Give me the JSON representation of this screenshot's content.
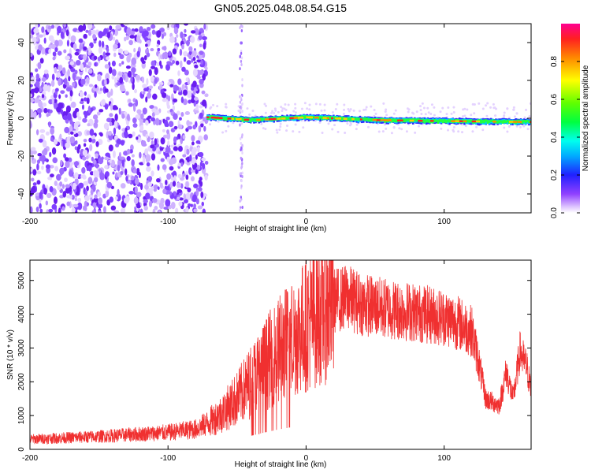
{
  "title": "GN05.2025.048.08.54.G15",
  "chart_data": [
    {
      "type": "heatmap",
      "xlabel": "Height of straight line (km)",
      "ylabel": "Frequency (Hz)",
      "xlim": [
        -200,
        163
      ],
      "ylim": [
        -50,
        50
      ],
      "x_ticks": [
        -200,
        -100,
        0,
        100
      ],
      "y_ticks": [
        -40,
        -20,
        0,
        20,
        40
      ],
      "colorbar": {
        "label": "Normalized spectral amplitude",
        "range": [
          0,
          1
        ],
        "ticks": [
          0,
          0.2,
          0.4,
          0.6,
          0.8
        ],
        "tick_labels": [
          "0.0",
          "0.2",
          "0.4",
          "0.6",
          "0.8"
        ]
      },
      "features": {
        "noise_region_x": [
          -200,
          -72
        ],
        "sparse_stripe_x": -47,
        "signal_line": {
          "x_start": -72,
          "x_end": 163,
          "freq_points": [
            [
              -72,
              0.5
            ],
            [
              -40,
              -1
            ],
            [
              0,
              0.5
            ],
            [
              50,
              -1
            ],
            [
              100,
              -1.5
            ],
            [
              160,
              -2
            ]
          ]
        }
      }
    },
    {
      "type": "line",
      "xlabel": "Height of straight line (km)",
      "ylabel": "SNR (10 * v/v)",
      "xlim": [
        -200,
        163
      ],
      "ylim": [
        0,
        5600
      ],
      "x_ticks": [
        -200,
        -100,
        0,
        100
      ],
      "y_ticks": [
        0,
        1000,
        2000,
        3000,
        4000,
        5000
      ],
      "color": "#f03030",
      "envelope": {
        "x": [
          -200,
          -150,
          -100,
          -80,
          -70,
          -60,
          -50,
          -40,
          -30,
          -20,
          -10,
          0,
          10,
          20,
          30,
          40,
          60,
          80,
          100,
          110,
          120,
          125,
          130,
          140,
          145,
          150,
          155,
          160,
          163
        ],
        "y": [
          300,
          380,
          500,
          600,
          800,
          1100,
          1500,
          2000,
          2500,
          2950,
          3300,
          3700,
          4100,
          4400,
          4500,
          4300,
          4150,
          4050,
          3900,
          3750,
          3500,
          2600,
          1500,
          1300,
          2300,
          1500,
          2900,
          2400,
          1700
        ]
      }
    }
  ]
}
